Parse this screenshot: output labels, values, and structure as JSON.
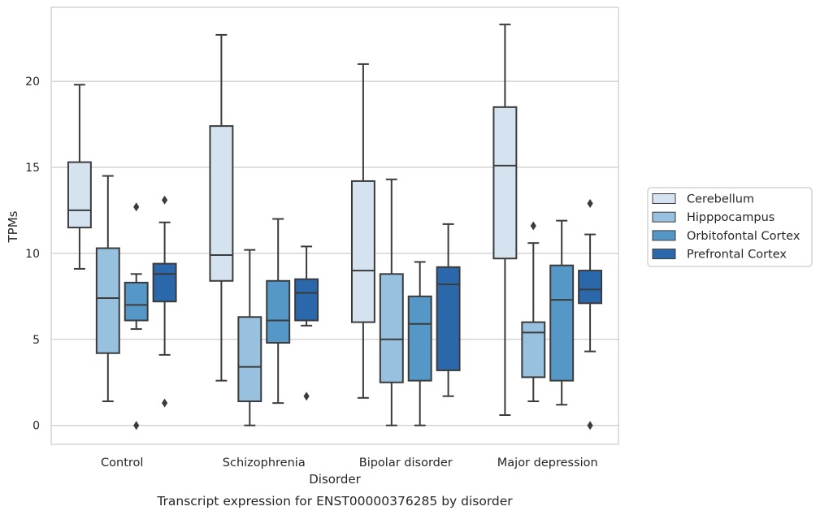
{
  "chart_data": {
    "type": "box",
    "title": "",
    "caption": "Transcript expression for ENST00000376285 by disorder",
    "xlabel": "Disorder",
    "ylabel": "TPMs",
    "ylim": [
      -1.1,
      24.3
    ],
    "yticks": [
      0,
      5,
      10,
      15,
      20
    ],
    "grid": true,
    "legend_position": "right",
    "categories": [
      "Control",
      "Schizophrenia",
      "Bipolar disorder",
      "Major depression"
    ],
    "series": [
      {
        "name": "Cerebellum",
        "color": "#d5e3f1",
        "boxes": [
          {
            "whisker_low": 9.1,
            "q1": 11.5,
            "median": 12.5,
            "q3": 15.3,
            "whisker_high": 19.8,
            "outliers": []
          },
          {
            "whisker_low": 2.6,
            "q1": 8.4,
            "median": 9.9,
            "q3": 17.4,
            "whisker_high": 22.7,
            "outliers": []
          },
          {
            "whisker_low": 1.6,
            "q1": 6.0,
            "median": 9.0,
            "q3": 14.2,
            "whisker_high": 21.0,
            "outliers": []
          },
          {
            "whisker_low": 0.6,
            "q1": 9.7,
            "median": 15.1,
            "q3": 18.5,
            "whisker_high": 23.3,
            "outliers": []
          }
        ]
      },
      {
        "name": "Hipppocampus",
        "color": "#97c1de",
        "boxes": [
          {
            "whisker_low": 1.4,
            "q1": 4.2,
            "median": 7.4,
            "q3": 10.3,
            "whisker_high": 14.5,
            "outliers": []
          },
          {
            "whisker_low": 0.0,
            "q1": 1.4,
            "median": 3.4,
            "q3": 6.3,
            "whisker_high": 10.2,
            "outliers": []
          },
          {
            "whisker_low": 0.0,
            "q1": 2.5,
            "median": 5.0,
            "q3": 8.8,
            "whisker_high": 14.3,
            "outliers": []
          },
          {
            "whisker_low": 1.4,
            "q1": 2.8,
            "median": 5.4,
            "q3": 6.0,
            "whisker_high": 10.6,
            "outliers": [
              11.6
            ]
          }
        ]
      },
      {
        "name": "Orbitofontal Cortex",
        "color": "#5597c7",
        "boxes": [
          {
            "whisker_low": 5.6,
            "q1": 6.1,
            "median": 7.0,
            "q3": 8.3,
            "whisker_high": 8.8,
            "outliers": [
              12.7,
              0.0
            ]
          },
          {
            "whisker_low": 1.3,
            "q1": 4.8,
            "median": 6.1,
            "q3": 8.4,
            "whisker_high": 12.0,
            "outliers": []
          },
          {
            "whisker_low": 0.0,
            "q1": 2.6,
            "median": 5.9,
            "q3": 7.5,
            "whisker_high": 9.5,
            "outliers": []
          },
          {
            "whisker_low": 1.2,
            "q1": 2.6,
            "median": 7.3,
            "q3": 9.3,
            "whisker_high": 11.9,
            "outliers": []
          }
        ]
      },
      {
        "name": "Prefrontal Cortex",
        "color": "#2a68ab",
        "boxes": [
          {
            "whisker_low": 4.1,
            "q1": 7.2,
            "median": 8.8,
            "q3": 9.4,
            "whisker_high": 11.8,
            "outliers": [
              13.1,
              1.3
            ]
          },
          {
            "whisker_low": 5.8,
            "q1": 6.1,
            "median": 7.7,
            "q3": 8.5,
            "whisker_high": 10.4,
            "outliers": [
              1.7
            ]
          },
          {
            "whisker_low": 1.7,
            "q1": 3.2,
            "median": 8.2,
            "q3": 9.2,
            "whisker_high": 11.7,
            "outliers": []
          },
          {
            "whisker_low": 4.3,
            "q1": 7.1,
            "median": 7.9,
            "q3": 9.0,
            "whisker_high": 11.1,
            "outliers": [
              12.9,
              0.0
            ]
          }
        ]
      }
    ]
  }
}
